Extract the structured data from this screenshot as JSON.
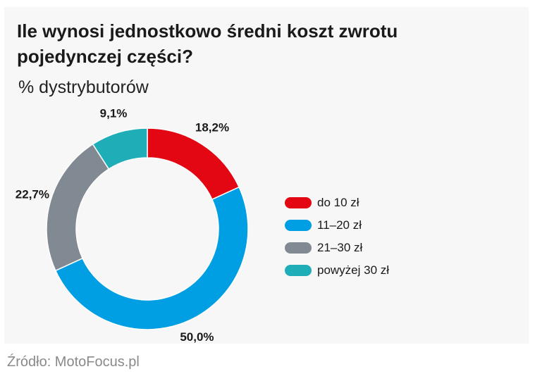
{
  "title": "Ile wynosi jednostkowo średni koszt zwrotu pojedynczej części?",
  "subtitle": "% dystrybutorów",
  "source": "Źródło: MotoFocus.pl",
  "chart_data": {
    "type": "pie",
    "donut": true,
    "categories": [
      "do 10 zł",
      "11–20 zł",
      "21–30 zł",
      "powyżej 30 zł"
    ],
    "values": [
      18.2,
      50.0,
      22.7,
      9.1
    ],
    "data_labels": [
      "18,2%",
      "50,0%",
      "22,7%",
      "9,1%"
    ],
    "colors": [
      "#e30613",
      "#009fe3",
      "#818a92",
      "#1fadb8"
    ],
    "legend_position": "right",
    "start_angle_deg": 0,
    "direction": "clockwise"
  }
}
